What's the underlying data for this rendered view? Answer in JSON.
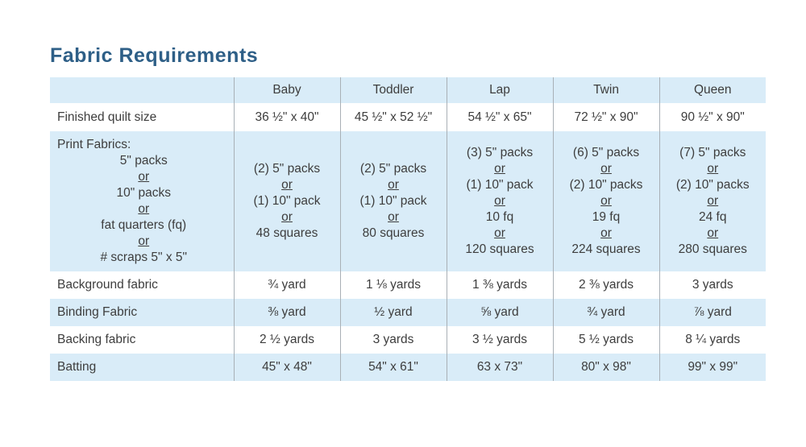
{
  "title": "Fabric Requirements",
  "colors": {
    "title_blue": "#2e5f87",
    "row_blue": "#d9ecf8",
    "grid_line": "#a9b0b6",
    "text": "#3d3d3d"
  },
  "table": {
    "header": [
      "",
      "Baby",
      "Toddler",
      "Lap",
      "Twin",
      "Queen"
    ],
    "rows": [
      {
        "name": "finished-quilt-size",
        "label": [
          "Finished quilt size"
        ],
        "cells": [
          [
            "36 ½\" x 40\""
          ],
          [
            "45 ½\" x 52 ½\""
          ],
          [
            "54 ½\" x 65\""
          ],
          [
            "72 ½\" x 90\""
          ],
          [
            "90 ½\" x 90\""
          ]
        ]
      },
      {
        "name": "print-fabrics",
        "label": [
          "Print Fabrics:",
          "5\" packs",
          "or",
          "10\" packs",
          "or",
          "fat quarters (fq)",
          "or",
          "# scraps 5\" x 5\""
        ],
        "cells": [
          [
            "(2) 5\" packs",
            "or",
            "(1) 10\" pack",
            "or",
            "48 squares"
          ],
          [
            "(2) 5\" packs",
            "or",
            "(1) 10\" pack",
            "or",
            "80 squares"
          ],
          [
            "(3) 5\" packs",
            "or",
            "(1) 10\" pack",
            "or",
            "10 fq",
            "or",
            "120 squares"
          ],
          [
            "(6) 5\" packs",
            "or",
            "(2) 10\" packs",
            "or",
            "19 fq",
            "or",
            "224 squares"
          ],
          [
            "(7) 5\" packs",
            "or",
            "(2) 10\" packs",
            "or",
            "24 fq",
            "or",
            "280 squares"
          ]
        ]
      },
      {
        "name": "background-fabric",
        "label": [
          "Background fabric"
        ],
        "cells": [
          [
            "¾ yard"
          ],
          [
            "1 ⅛ yards"
          ],
          [
            "1 ⅜ yards"
          ],
          [
            "2 ⅜ yards"
          ],
          [
            "3 yards"
          ]
        ]
      },
      {
        "name": "binding-fabric",
        "label": [
          "Binding Fabric"
        ],
        "cells": [
          [
            "⅜ yard"
          ],
          [
            "½ yard"
          ],
          [
            "⅝ yard"
          ],
          [
            "¾ yard"
          ],
          [
            "⅞ yard"
          ]
        ]
      },
      {
        "name": "backing-fabric",
        "label": [
          "Backing fabric"
        ],
        "cells": [
          [
            "2 ½ yards"
          ],
          [
            "3 yards"
          ],
          [
            "3 ½ yards"
          ],
          [
            "5 ½ yards"
          ],
          [
            "8 ¼ yards"
          ]
        ]
      },
      {
        "name": "batting",
        "label": [
          "Batting"
        ],
        "cells": [
          [
            "45\" x 48\""
          ],
          [
            "54\" x 61\""
          ],
          [
            "63 x 73\""
          ],
          [
            "80\" x 98\""
          ],
          [
            "99\" x 99\""
          ]
        ]
      }
    ]
  }
}
